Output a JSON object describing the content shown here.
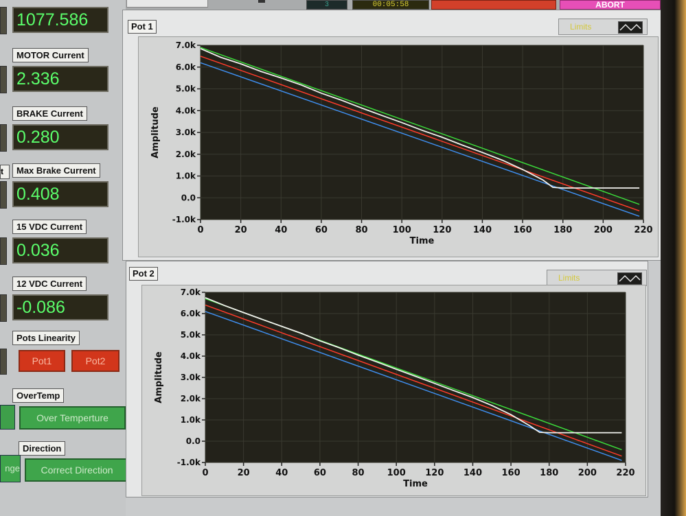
{
  "header": {
    "counter": "3",
    "elapsed_time": "00:05:58",
    "abort_label": "ABORT"
  },
  "readouts": [
    {
      "label": "",
      "value": "1077.586"
    },
    {
      "label": "MOTOR Current",
      "value": "2.336"
    },
    {
      "label": "BRAKE Current",
      "value": "0.280"
    },
    {
      "label": "Max Brake Current",
      "value": "0.408"
    },
    {
      "label": "15 VDC Current",
      "value": "0.036"
    },
    {
      "label": "12 VDC Current",
      "value": "-0.086"
    }
  ],
  "pots_linearity": {
    "label": "Pots Linearity",
    "pot1": "Pot1",
    "pot2": "Pot2"
  },
  "overtemp": {
    "label": "OverTemp",
    "status": "Over Temperture"
  },
  "direction": {
    "label": "Direction",
    "status": "Correct Direction",
    "partial_left": "nge"
  },
  "partial_left_label": "t",
  "colors": {
    "plot_bg": "#23221a",
    "grid": "#3a3a30",
    "upper_limit": "#3bdc3b",
    "nominal": "#ff3b2a",
    "lower_limit": "#3f8ff0",
    "measured": "#f2f2ee",
    "readout_text": "#5bff6c"
  },
  "chart_data": [
    {
      "type": "line",
      "title": "Pot 1",
      "legend_label": "Limits",
      "xlabel": "Time",
      "ylabel": "Amplitude",
      "xlim": [
        0,
        220
      ],
      "ylim": [
        -1000,
        7000
      ],
      "x_ticks": [
        "0",
        "20",
        "40",
        "60",
        "80",
        "100",
        "120",
        "140",
        "160",
        "180",
        "200",
        "220"
      ],
      "y_ticks": [
        "-1.0k",
        "0.0",
        "1.0k",
        "2.0k",
        "3.0k",
        "4.0k",
        "5.0k",
        "6.0k",
        "7.0k"
      ],
      "series": [
        {
          "key": "upper_limit",
          "color": "#3bdc3b",
          "x": [
            0,
            218
          ],
          "y": [
            6900,
            -300
          ]
        },
        {
          "key": "nominal",
          "color": "#ff3b2a",
          "x": [
            0,
            218
          ],
          "y": [
            6500,
            -600
          ]
        },
        {
          "key": "lower_limit",
          "color": "#3f8ff0",
          "x": [
            0,
            218
          ],
          "y": [
            6200,
            -850
          ]
        },
        {
          "key": "measured",
          "color": "#f2f2ee",
          "x": [
            0,
            10,
            20,
            30,
            40,
            50,
            60,
            70,
            80,
            90,
            100,
            110,
            120,
            130,
            140,
            150,
            160,
            170,
            175,
            180,
            190,
            200,
            218
          ],
          "y": [
            6850,
            6450,
            6150,
            5800,
            5500,
            5180,
            4800,
            4480,
            4120,
            3780,
            3450,
            3100,
            2780,
            2420,
            2080,
            1720,
            1300,
            820,
            480,
            450,
            450,
            450,
            450
          ]
        }
      ]
    },
    {
      "type": "line",
      "title": "Pot 2",
      "legend_label": "Limits",
      "xlabel": "Time",
      "ylabel": "Amplitude",
      "xlim": [
        0,
        220
      ],
      "ylim": [
        -1000,
        7000
      ],
      "x_ticks": [
        "0",
        "20",
        "40",
        "60",
        "80",
        "100",
        "120",
        "140",
        "160",
        "180",
        "200",
        "220"
      ],
      "y_ticks": [
        "-1.0k",
        "0.0",
        "1.0k",
        "2.0k",
        "3.0k",
        "4.0k",
        "5.0k",
        "6.0k",
        "7.0k"
      ],
      "series": [
        {
          "key": "upper_limit",
          "color": "#3bdc3b",
          "x": [
            0,
            218
          ],
          "y": [
            6700,
            -400
          ]
        },
        {
          "key": "nominal",
          "color": "#ff3b2a",
          "x": [
            0,
            218
          ],
          "y": [
            6400,
            -700
          ]
        },
        {
          "key": "lower_limit",
          "color": "#3f8ff0",
          "x": [
            0,
            218
          ],
          "y": [
            6100,
            -900
          ]
        },
        {
          "key": "measured",
          "color": "#f2f2ee",
          "x": [
            0,
            10,
            20,
            30,
            40,
            50,
            60,
            70,
            80,
            90,
            100,
            110,
            120,
            130,
            140,
            150,
            160,
            170,
            175,
            180,
            190,
            200,
            218
          ],
          "y": [
            6750,
            6380,
            6050,
            5720,
            5400,
            5080,
            4720,
            4400,
            4050,
            3720,
            3380,
            3050,
            2720,
            2380,
            2050,
            1680,
            1250,
            720,
            420,
            400,
            400,
            400,
            400
          ]
        }
      ]
    }
  ]
}
